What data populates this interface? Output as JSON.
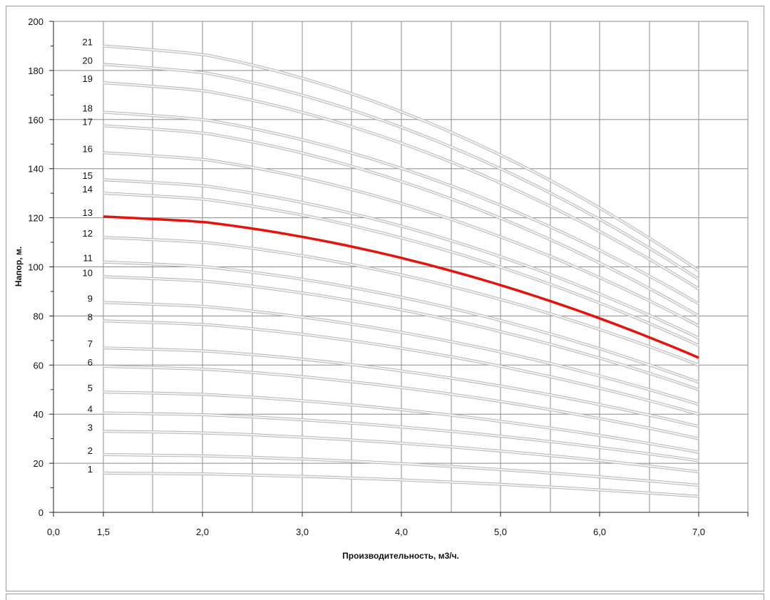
{
  "chart_data": {
    "type": "line",
    "title": "",
    "xlabel": "Производительность, м3/ч.",
    "ylabel": "Напор, м.",
    "xlim": [
      0,
      7.0
    ],
    "ylim": [
      0,
      200
    ],
    "x_ticks": [
      {
        "value": 0.0,
        "label": "0,0"
      },
      {
        "value": 1.5,
        "label": "1,5"
      },
      {
        "value": 2.0,
        "label": "2,0"
      },
      {
        "value": 3.0,
        "label": "3,0"
      },
      {
        "value": 4.0,
        "label": "4,0"
      },
      {
        "value": 5.0,
        "label": "5,0"
      },
      {
        "value": 6.0,
        "label": "6,0"
      },
      {
        "value": 7.0,
        "label": "7,0"
      }
    ],
    "y_ticks": [
      {
        "value": 0,
        "label": "0"
      },
      {
        "value": 20,
        "label": "20"
      },
      {
        "value": 40,
        "label": "40"
      },
      {
        "value": 60,
        "label": "60"
      },
      {
        "value": 80,
        "label": "80"
      },
      {
        "value": 100,
        "label": "100"
      },
      {
        "value": 120,
        "label": "120"
      },
      {
        "value": 140,
        "label": "140"
      },
      {
        "value": 160,
        "label": "160"
      },
      {
        "value": 180,
        "label": "180"
      },
      {
        "value": 200,
        "label": "200"
      }
    ],
    "grid": true,
    "highlight_color": "#e8120c",
    "curve_color": "#d4d4d4",
    "x": [
      1.5,
      7.0
    ],
    "series": [
      {
        "name": "1",
        "head_start": 16,
        "head_end": 6.5,
        "highlight": false
      },
      {
        "name": "2",
        "head_start": 23.5,
        "head_end": 11,
        "highlight": false
      },
      {
        "name": "3",
        "head_start": 33,
        "head_end": 16.5,
        "highlight": false
      },
      {
        "name": "4",
        "head_start": 40.5,
        "head_end": 21,
        "highlight": false
      },
      {
        "name": "5",
        "head_start": 49,
        "head_end": 24.5,
        "highlight": false
      },
      {
        "name": "6",
        "head_start": 59.5,
        "head_end": 30,
        "highlight": false
      },
      {
        "name": "7",
        "head_start": 67,
        "head_end": 35,
        "highlight": false
      },
      {
        "name": "8",
        "head_start": 78,
        "head_end": 40,
        "highlight": false
      },
      {
        "name": "9",
        "head_start": 85.5,
        "head_end": 44,
        "highlight": false
      },
      {
        "name": "10",
        "head_start": 96,
        "head_end": 50,
        "highlight": false
      },
      {
        "name": "11",
        "head_start": 102,
        "head_end": 53,
        "highlight": false
      },
      {
        "name": "12",
        "head_start": 112,
        "head_end": 60,
        "highlight": false
      },
      {
        "name": "13",
        "head_start": 120.5,
        "head_end": 63,
        "highlight": true
      },
      {
        "name": "14",
        "head_start": 130,
        "head_end": 68,
        "highlight": false
      },
      {
        "name": "15",
        "head_start": 135.5,
        "head_end": 71,
        "highlight": false
      },
      {
        "name": "16",
        "head_start": 146.5,
        "head_end": 76,
        "highlight": false
      },
      {
        "name": "17",
        "head_start": 157.5,
        "head_end": 80,
        "highlight": false
      },
      {
        "name": "18",
        "head_start": 163,
        "head_end": 85,
        "highlight": false
      },
      {
        "name": "19",
        "head_start": 175,
        "head_end": 91,
        "highlight": false
      },
      {
        "name": "20",
        "head_start": 182.5,
        "head_end": 95,
        "highlight": false
      },
      {
        "name": "21",
        "head_start": 190,
        "head_end": 98.5,
        "highlight": false
      }
    ]
  }
}
